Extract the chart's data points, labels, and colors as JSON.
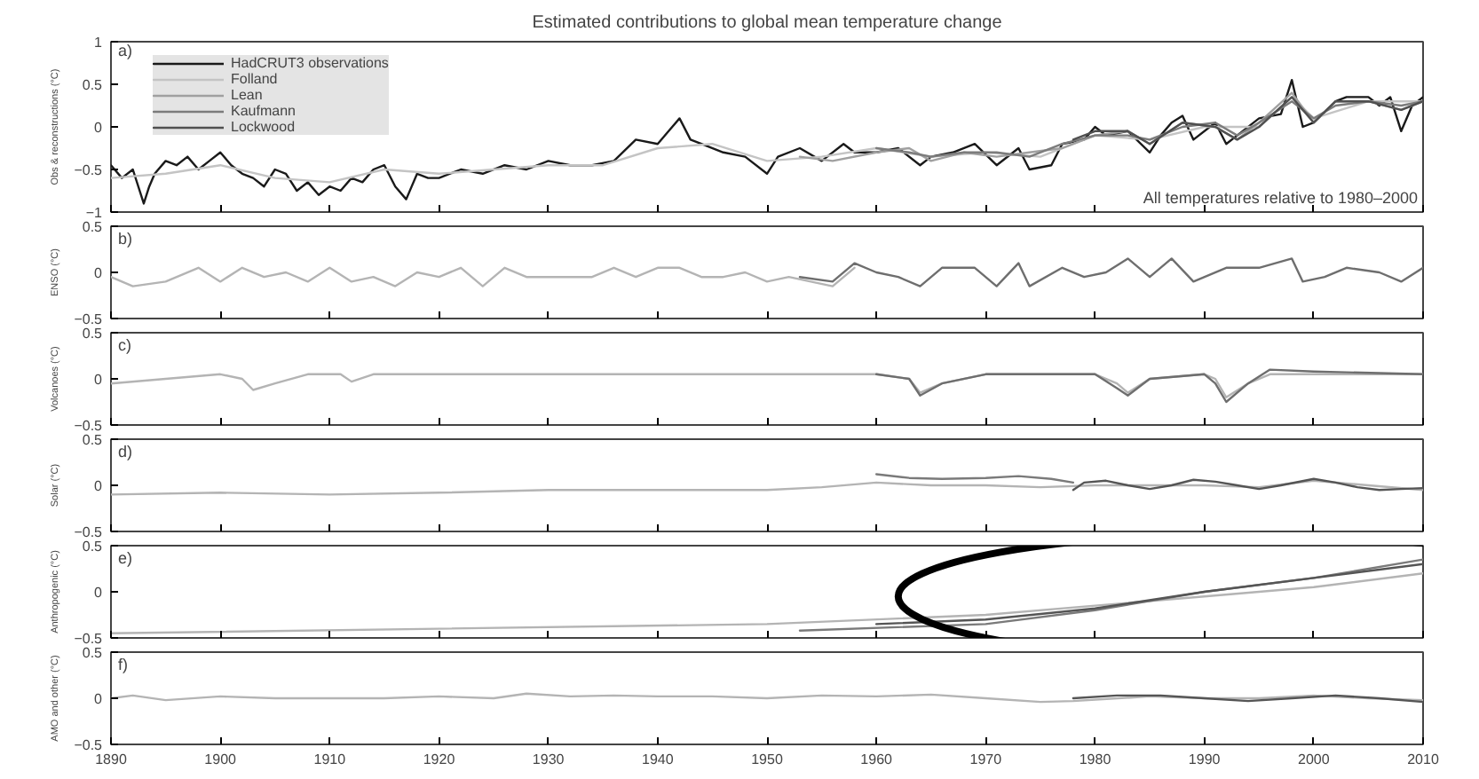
{
  "chart_data": [
    {
      "type": "line",
      "title": "Estimated contributions to global mean temperature change",
      "ylabel": "Obs & reconstructions (°C)",
      "annotations": [
        "a)",
        "All temperatures relative to 1980–2000"
      ],
      "xlim": [
        1890,
        2010
      ],
      "xticks": [
        1890,
        1900,
        1910,
        1920,
        1930,
        1940,
        1950,
        1960,
        1970,
        1980,
        1990,
        2000,
        2010
      ],
      "ylim": [
        -1,
        1
      ],
      "yticks": [
        -1,
        -0.5,
        0,
        0.5,
        1
      ],
      "tick_labels": "y",
      "legend": "top left",
      "series": [
        {
          "name": "HadCRUT3 observations",
          "color": "#1a1a1a",
          "x": [
            1890,
            1891,
            1892,
            1893,
            1893.5,
            1894,
            1895,
            1896,
            1897,
            1898,
            1899,
            1900,
            1901,
            1902,
            1903,
            1904,
            1905,
            1906,
            1907,
            1908,
            1909,
            1910,
            1911,
            1912,
            1913,
            1914,
            1915,
            1916,
            1917,
            1918,
            1919,
            1920,
            1922,
            1924,
            1926,
            1928,
            1930,
            1932,
            1934,
            1936,
            1938,
            1940,
            1941,
            1942,
            1943,
            1944,
            1946,
            1948,
            1950,
            1951,
            1953,
            1955,
            1957,
            1958,
            1960,
            1962,
            1964,
            1965,
            1967,
            1969,
            1971,
            1973,
            1974,
            1976,
            1977,
            1979,
            1980,
            1981,
            1983,
            1985,
            1986,
            1987,
            1988,
            1989,
            1991,
            1992,
            1993,
            1995,
            1997,
            1998,
            1999,
            2000,
            2002,
            2003,
            2005,
            2006,
            2007,
            2008,
            2009,
            2010
          ],
          "values": [
            -0.45,
            -0.6,
            -0.5,
            -0.9,
            -0.7,
            -0.55,
            -0.4,
            -0.45,
            -0.35,
            -0.5,
            -0.4,
            -0.3,
            -0.45,
            -0.55,
            -0.6,
            -0.7,
            -0.5,
            -0.55,
            -0.75,
            -0.65,
            -0.8,
            -0.7,
            -0.75,
            -0.6,
            -0.65,
            -0.5,
            -0.45,
            -0.7,
            -0.85,
            -0.55,
            -0.6,
            -0.6,
            -0.5,
            -0.55,
            -0.45,
            -0.5,
            -0.4,
            -0.45,
            -0.45,
            -0.4,
            -0.15,
            -0.2,
            -0.05,
            0.1,
            -0.15,
            -0.2,
            -0.3,
            -0.35,
            -0.55,
            -0.35,
            -0.25,
            -0.4,
            -0.2,
            -0.3,
            -0.3,
            -0.25,
            -0.45,
            -0.35,
            -0.3,
            -0.2,
            -0.45,
            -0.25,
            -0.5,
            -0.45,
            -0.2,
            -0.15,
            0.0,
            -0.1,
            -0.05,
            -0.3,
            -0.1,
            0.05,
            0.13,
            -0.15,
            0.05,
            -0.2,
            -0.1,
            0.1,
            0.15,
            0.55,
            0.0,
            0.05,
            0.3,
            0.35,
            0.35,
            0.25,
            0.35,
            -0.05,
            0.25,
            0.35
          ]
        },
        {
          "name": "Folland",
          "color": "#c4c4c4",
          "x": [
            1890,
            1895,
            1900,
            1905,
            1910,
            1915,
            1920,
            1925,
            1930,
            1935,
            1940,
            1945,
            1950,
            1955,
            1960,
            1965,
            1970,
            1975,
            1980,
            1985,
            1990,
            1995,
            1998,
            2000,
            2005,
            2010
          ],
          "values": [
            -0.6,
            -0.55,
            -0.45,
            -0.6,
            -0.65,
            -0.5,
            -0.55,
            -0.5,
            -0.45,
            -0.45,
            -0.25,
            -0.2,
            -0.4,
            -0.35,
            -0.25,
            -0.35,
            -0.3,
            -0.35,
            -0.1,
            -0.15,
            0.0,
            0.0,
            0.35,
            0.1,
            0.3,
            0.3
          ]
        },
        {
          "name": "Lean",
          "color": "#a0a0a0",
          "x": [
            1953,
            1956,
            1960,
            1963,
            1965,
            1968,
            1971,
            1974,
            1977,
            1980,
            1983,
            1985,
            1988,
            1991,
            1993,
            1995,
            1998,
            2000,
            2002,
            2005,
            2008,
            2010
          ],
          "values": [
            -0.35,
            -0.4,
            -0.3,
            -0.25,
            -0.4,
            -0.3,
            -0.35,
            -0.3,
            -0.25,
            -0.1,
            -0.05,
            -0.2,
            0.05,
            0.0,
            -0.15,
            0.05,
            0.4,
            0.05,
            0.3,
            0.3,
            0.2,
            0.3
          ]
        },
        {
          "name": "Kaufmann",
          "color": "#7c7c7c",
          "x": [
            1960,
            1963,
            1965,
            1968,
            1971,
            1974,
            1977,
            1980,
            1983,
            1985,
            1988,
            1991,
            1993,
            1995,
            1998,
            2000,
            2002,
            2005,
            2008,
            2010
          ],
          "values": [
            -0.25,
            -0.3,
            -0.35,
            -0.3,
            -0.3,
            -0.35,
            -0.2,
            -0.1,
            -0.1,
            -0.15,
            0.0,
            0.05,
            -0.1,
            0.05,
            0.3,
            0.1,
            0.25,
            0.3,
            0.25,
            0.3
          ]
        },
        {
          "name": "Lockwood",
          "color": "#505050",
          "x": [
            1978,
            1980,
            1983,
            1985,
            1988,
            1991,
            1993,
            1995,
            1998,
            2000,
            2002,
            2005,
            2008,
            2010
          ],
          "values": [
            -0.15,
            -0.05,
            -0.05,
            -0.2,
            0.05,
            0.0,
            -0.15,
            0.0,
            0.35,
            0.05,
            0.3,
            0.3,
            0.2,
            0.3
          ]
        }
      ]
    },
    {
      "type": "line",
      "ylabel": "ENSO (°C)",
      "annotations": [
        "b)"
      ],
      "xlim": [
        1890,
        2010
      ],
      "xticks": [
        1890,
        1900,
        1910,
        1920,
        1930,
        1940,
        1950,
        1960,
        1970,
        1980,
        1990,
        2000,
        2010
      ],
      "ylim": [
        -0.5,
        0.5
      ],
      "yticks": [
        -0.5,
        0,
        0.5
      ],
      "tick_labels": "y",
      "series": [
        {
          "color": "#b4b4b4",
          "x": [
            1890,
            1892,
            1895,
            1898,
            1900,
            1902,
            1904,
            1906,
            1908,
            1910,
            1912,
            1914,
            1916,
            1918,
            1920,
            1922,
            1924,
            1926,
            1928,
            1930,
            1932,
            1934,
            1936,
            1938,
            1940,
            1942,
            1944,
            1946,
            1948,
            1950,
            1952,
            1954,
            1956,
            1958
          ],
          "values": [
            -0.05,
            -0.15,
            -0.1,
            0.05,
            -0.1,
            0.05,
            -0.05,
            0.0,
            -0.1,
            0.05,
            -0.1,
            -0.05,
            -0.15,
            0.0,
            -0.05,
            0.05,
            -0.15,
            0.05,
            -0.05,
            -0.05,
            -0.05,
            -0.05,
            0.05,
            -0.05,
            0.05,
            0.05,
            -0.05,
            -0.05,
            0.0,
            -0.1,
            -0.05,
            -0.1,
            -0.15,
            0.05
          ]
        },
        {
          "color": "#6e6e6e",
          "x": [
            1953,
            1956,
            1958,
            1960,
            1962,
            1964,
            1966,
            1969,
            1971,
            1973,
            1974,
            1977,
            1979,
            1981,
            1983,
            1985,
            1987,
            1989,
            1992,
            1995,
            1998,
            1999,
            2001,
            2003,
            2006,
            2008,
            2010
          ],
          "values": [
            -0.05,
            -0.1,
            0.1,
            0.0,
            -0.05,
            -0.15,
            0.05,
            0.05,
            -0.15,
            0.1,
            -0.15,
            0.05,
            -0.05,
            0.0,
            0.15,
            -0.05,
            0.15,
            -0.1,
            0.05,
            0.05,
            0.15,
            -0.1,
            -0.05,
            0.05,
            0.0,
            -0.1,
            0.05
          ]
        }
      ]
    },
    {
      "type": "line",
      "ylabel": "Volcanoes (°C)",
      "annotations": [
        "c)"
      ],
      "xlim": [
        1890,
        2010
      ],
      "xticks": [
        1890,
        1900,
        1910,
        1920,
        1930,
        1940,
        1950,
        1960,
        1970,
        1980,
        1990,
        2000,
        2010
      ],
      "ylim": [
        -0.5,
        0.5
      ],
      "yticks": [
        -0.5,
        0,
        0.5
      ],
      "tick_labels": "y",
      "series": [
        {
          "color": "#b4b4b4",
          "x": [
            1890,
            1895,
            1900,
            1902,
            1903,
            1905,
            1908,
            1911,
            1912,
            1914,
            1920,
            1930,
            1940,
            1950,
            1960,
            1963,
            1964,
            1966,
            1970,
            1980,
            1982,
            1983,
            1985,
            1990,
            1991,
            1992,
            1994,
            1996,
            2000,
            2010
          ],
          "values": [
            -0.05,
            0.0,
            0.05,
            0.0,
            -0.12,
            -0.05,
            0.05,
            0.05,
            -0.03,
            0.05,
            0.05,
            0.05,
            0.05,
            0.05,
            0.05,
            0.0,
            -0.15,
            -0.05,
            0.05,
            0.05,
            -0.05,
            -0.15,
            0.0,
            0.05,
            0.0,
            -0.2,
            -0.05,
            0.05,
            0.05,
            0.05
          ]
        },
        {
          "color": "#6e6e6e",
          "x": [
            1960,
            1963,
            1964,
            1966,
            1970,
            1980,
            1982,
            1983,
            1985,
            1990,
            1991,
            1992,
            1994,
            1996,
            2000,
            2010
          ],
          "values": [
            0.05,
            0.0,
            -0.18,
            -0.05,
            0.05,
            0.05,
            -0.1,
            -0.18,
            0.0,
            0.05,
            -0.05,
            -0.25,
            -0.05,
            0.1,
            0.08,
            0.05
          ]
        }
      ]
    },
    {
      "type": "line",
      "ylabel": "Solar (°C)",
      "annotations": [
        "d)"
      ],
      "xlim": [
        1890,
        2010
      ],
      "xticks": [
        1890,
        1900,
        1910,
        1920,
        1930,
        1940,
        1950,
        1960,
        1970,
        1980,
        1990,
        2000,
        2010
      ],
      "ylim": [
        -0.5,
        0.5
      ],
      "yticks": [
        -0.5,
        0,
        0.5
      ],
      "tick_labels": "y",
      "series": [
        {
          "color": "#b4b4b4",
          "x": [
            1890,
            1900,
            1910,
            1920,
            1930,
            1940,
            1950,
            1955,
            1960,
            1965,
            1970,
            1975,
            1980,
            1985,
            1990,
            1995,
            2000,
            2005,
            2010
          ],
          "values": [
            -0.1,
            -0.08,
            -0.1,
            -0.08,
            -0.05,
            -0.05,
            -0.05,
            -0.02,
            0.03,
            0.0,
            0.0,
            -0.02,
            0.0,
            0.0,
            0.0,
            -0.02,
            0.05,
            0.0,
            -0.05
          ]
        },
        {
          "color": "#7a7a7a",
          "x": [
            1960,
            1963,
            1966,
            1970,
            1973,
            1976,
            1978
          ],
          "values": [
            0.12,
            0.08,
            0.07,
            0.08,
            0.1,
            0.07,
            0.03
          ]
        },
        {
          "color": "#555555",
          "x": [
            1978,
            1979,
            1981,
            1983,
            1985,
            1987,
            1989,
            1991,
            1993,
            1995,
            1997,
            2000,
            2002,
            2004,
            2006,
            2008,
            2010
          ],
          "values": [
            -0.05,
            0.03,
            0.05,
            0.0,
            -0.04,
            0.0,
            0.06,
            0.04,
            0.0,
            -0.04,
            0.0,
            0.07,
            0.03,
            -0.02,
            -0.05,
            -0.04,
            -0.03
          ]
        }
      ]
    },
    {
      "type": "line",
      "ylabel": "Anthropogenic (°C)",
      "annotations": [
        "e)"
      ],
      "xlim": [
        1890,
        2010
      ],
      "xticks": [
        1890,
        1900,
        1910,
        1920,
        1930,
        1940,
        1950,
        1960,
        1970,
        1980,
        1990,
        2000,
        2010
      ],
      "ylim": [
        -0.5,
        0.5
      ],
      "yticks": [
        -0.5,
        0,
        0.5
      ],
      "tick_labels": "y",
      "series": [
        {
          "color": "#b4b4b4",
          "x": [
            1890,
            1920,
            1950,
            1970,
            1980,
            1990,
            2000,
            2010
          ],
          "values": [
            -0.45,
            -0.4,
            -0.35,
            -0.25,
            -0.15,
            -0.05,
            0.05,
            0.2
          ]
        },
        {
          "color": "#7a7a7a",
          "x": [
            1953,
            1970,
            1980,
            1990,
            2000,
            2010
          ],
          "values": [
            -0.42,
            -0.35,
            -0.2,
            0.0,
            0.15,
            0.35
          ]
        },
        {
          "color": "#555555",
          "x": [
            1960,
            1970,
            1980,
            1990,
            2000,
            2010
          ],
          "values": [
            -0.35,
            -0.3,
            -0.18,
            0.0,
            0.15,
            0.3
          ]
        }
      ]
    },
    {
      "type": "line",
      "ylabel": "AMO and other (°C)",
      "annotations": [
        "f)"
      ],
      "xlim": [
        1890,
        2010
      ],
      "xticks": [
        1890,
        1900,
        1910,
        1920,
        1930,
        1940,
        1950,
        1960,
        1970,
        1980,
        1990,
        2000,
        2010
      ],
      "ylim": [
        -0.5,
        0.5
      ],
      "yticks": [
        -0.5,
        0,
        0.5
      ],
      "series": [
        {
          "color": "#b4b4b4",
          "x": [
            1890,
            1892,
            1895,
            1900,
            1905,
            1910,
            1915,
            1920,
            1925,
            1928,
            1932,
            1936,
            1940,
            1945,
            1950,
            1955,
            1960,
            1965,
            1970,
            1975,
            1978,
            1985,
            1990,
            1995,
            2000,
            2005,
            2010
          ],
          "values": [
            0.0,
            0.03,
            -0.02,
            0.02,
            0.0,
            0.0,
            0.0,
            0.02,
            0.0,
            0.05,
            0.02,
            0.03,
            0.02,
            0.02,
            0.0,
            0.03,
            0.02,
            0.04,
            0.0,
            -0.04,
            -0.03,
            0.02,
            0.0,
            0.0,
            0.03,
            0.0,
            -0.02
          ]
        },
        {
          "color": "#555555",
          "x": [
            1978,
            1982,
            1986,
            1990,
            1994,
            1998,
            2002,
            2006,
            2010
          ],
          "values": [
            0.0,
            0.03,
            0.03,
            0.0,
            -0.03,
            0.0,
            0.03,
            0.0,
            -0.04
          ]
        }
      ]
    }
  ]
}
